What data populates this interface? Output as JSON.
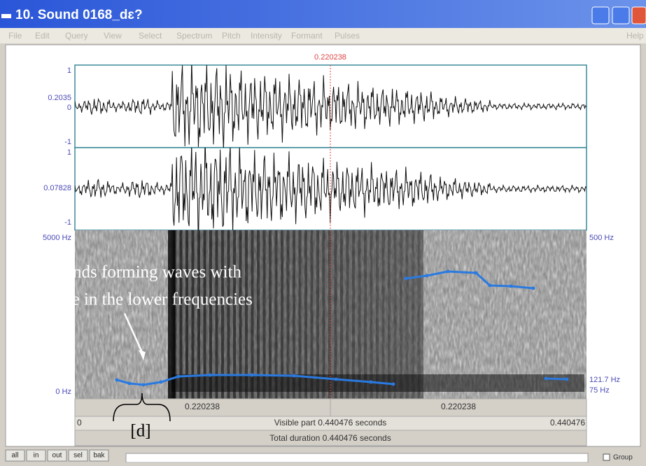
{
  "window": {
    "title": "10. Sound 0168_dɛ?"
  },
  "menu": {
    "items": [
      "File",
      "Edit",
      "Query",
      "View",
      "Select",
      "Spectrum",
      "Pitch",
      "Intensity",
      "Formant",
      "Pulses"
    ],
    "help": "Help"
  },
  "cursor": {
    "time": "0.220238"
  },
  "channels": [
    {
      "top": "1",
      "value": "0.2035",
      "zero": "0",
      "bottom": "-1"
    },
    {
      "top": "1",
      "value": "0.07828",
      "bottom": "-1"
    }
  ],
  "spectrogram": {
    "max": "5000 Hz",
    "min": "0 Hz",
    "pitch_max": "500 Hz",
    "pitch_value": "121.7 Hz",
    "pitch_min": "75 Hz"
  },
  "annotation": {
    "line1": "Light bands forming waves with",
    "line2": "pitch  line in the lower frequencies",
    "segment": "[d]"
  },
  "footer": {
    "left_time": "0.220238",
    "right_time": "0.220238",
    "start": "0",
    "visible": "Visible part 0.440476 seconds",
    "end": "0.440476",
    "total": "Total duration 0.440476 seconds"
  },
  "buttons": [
    "all",
    "in",
    "out",
    "sel",
    "bak"
  ],
  "group": "Group"
}
